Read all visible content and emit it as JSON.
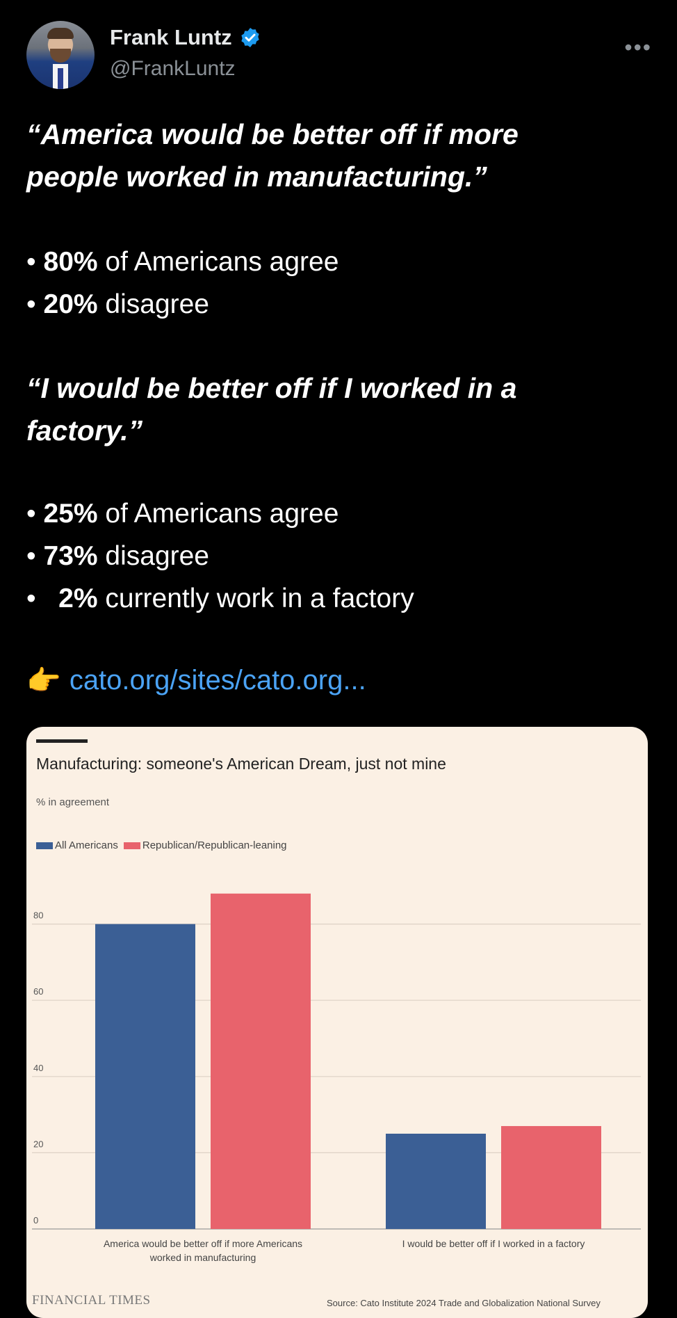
{
  "tweet": {
    "author_name": "Frank Luntz",
    "author_handle": "@FrankLuntz",
    "more_label": "•••",
    "quote1_line1": "“America would be better off if more",
    "quote1_line2": "people worked in manufacturing.”",
    "q1_b1_num": "80%",
    "q1_b1_text": " of Americans agree",
    "q1_b2_num": "20%",
    "q1_b2_text": " disagree",
    "quote2_line1": "“I would be better off if I worked in a",
    "quote2_line2": "factory.”",
    "q2_b1_num": "25%",
    "q2_b1_text": " of Americans agree",
    "q2_b2_num": "73%",
    "q2_b2_text": " disagree",
    "q2_b3_num": "2%",
    "q2_b3_text": " currently work in a factory",
    "link_emoji": "👉",
    "link_text": "cato.org/sites/cato.org..."
  },
  "card": {
    "title": "Manufacturing: someone's American Dream, just not mine",
    "subtitle": "% in agreement",
    "publisher": "FINANCIAL TIMES",
    "source": "Source: Cato Institute 2024 Trade and Globalization National Survey"
  },
  "chart_data": {
    "type": "bar",
    "title": "Manufacturing: someone's American Dream, just not mine",
    "ylabel": "% in agreement",
    "ylim": [
      0,
      90
    ],
    "yticks": [
      0,
      20,
      40,
      60,
      80
    ],
    "grid": true,
    "legend_position": "top-left",
    "categories": [
      [
        "America would be better off if more Americans",
        "worked in manufacturing"
      ],
      [
        "I would be better off if I worked in a factory"
      ]
    ],
    "series": [
      {
        "name": "All Americans",
        "color": "#3b5f95",
        "values": [
          80,
          25
        ]
      },
      {
        "name": "Republican/Republican-leaning",
        "color": "#e8636c",
        "values": [
          88,
          27
        ]
      }
    ]
  },
  "colors": {
    "link": "#4ba3f5",
    "verified": "#1d9bf0",
    "card_bg": "#fbf0e4"
  }
}
